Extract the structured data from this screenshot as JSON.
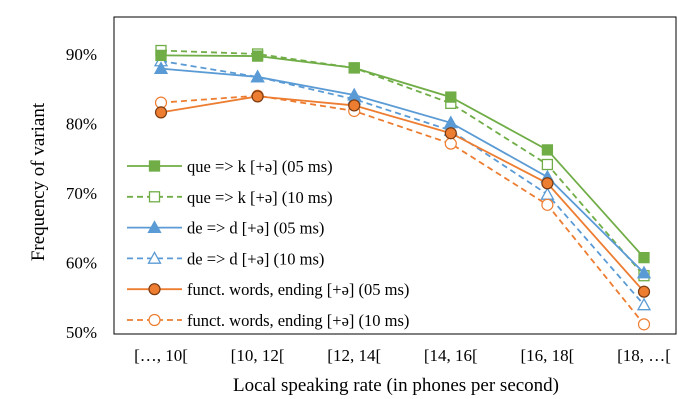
{
  "chart_data": {
    "type": "line",
    "title": "",
    "xlabel": "Local speaking rate (in phones per second)",
    "ylabel": "Frequency of variant",
    "categories": [
      "[…, 10[",
      "[10, 12[",
      "[12, 14[",
      "[14, 16[",
      "[16, 18[",
      "[18, …["
    ],
    "ylim": [
      0.5,
      0.95
    ],
    "yticks": [
      0.5,
      0.6,
      0.7,
      0.8,
      0.9
    ],
    "ytick_labels": [
      "50%",
      "60%",
      "70%",
      "80%",
      "90%"
    ],
    "grid": false,
    "legend_position": "left-inside",
    "series": [
      {
        "name": "que => k [+ə] (05 ms)",
        "values": [
          0.898,
          0.897,
          0.88,
          0.838,
          0.762,
          0.607
        ],
        "color": "#70AD47",
        "marker": "square",
        "filled": true,
        "dashed": false
      },
      {
        "name": "que => k [+ə] (10 ms)",
        "values": [
          0.905,
          0.9,
          0.88,
          0.829,
          0.741,
          0.581
        ],
        "color": "#70AD47",
        "marker": "square",
        "filled": false,
        "dashed": true
      },
      {
        "name": "de => d [+ə] (05 ms)",
        "values": [
          0.879,
          0.867,
          0.841,
          0.801,
          0.723,
          0.585
        ],
        "color": "#5B9BD5",
        "marker": "triangle",
        "filled": true,
        "dashed": false
      },
      {
        "name": "de => d [+ə] (10 ms)",
        "values": [
          0.89,
          0.867,
          0.835,
          0.79,
          0.698,
          0.539
        ],
        "color": "#5B9BD5",
        "marker": "triangle",
        "filled": false,
        "dashed": true
      },
      {
        "name": "funct. words, ending [+ə] (05 ms)",
        "values": [
          0.816,
          0.839,
          0.826,
          0.786,
          0.714,
          0.558
        ],
        "color": "#ED7D31",
        "marker": "circle",
        "filled": true,
        "dashed": false
      },
      {
        "name": "funct. words, ending [+ə] (10 ms)",
        "values": [
          0.83,
          0.84,
          0.818,
          0.771,
          0.683,
          0.511
        ],
        "color": "#ED7D31",
        "marker": "circle",
        "filled": false,
        "dashed": true
      }
    ]
  }
}
